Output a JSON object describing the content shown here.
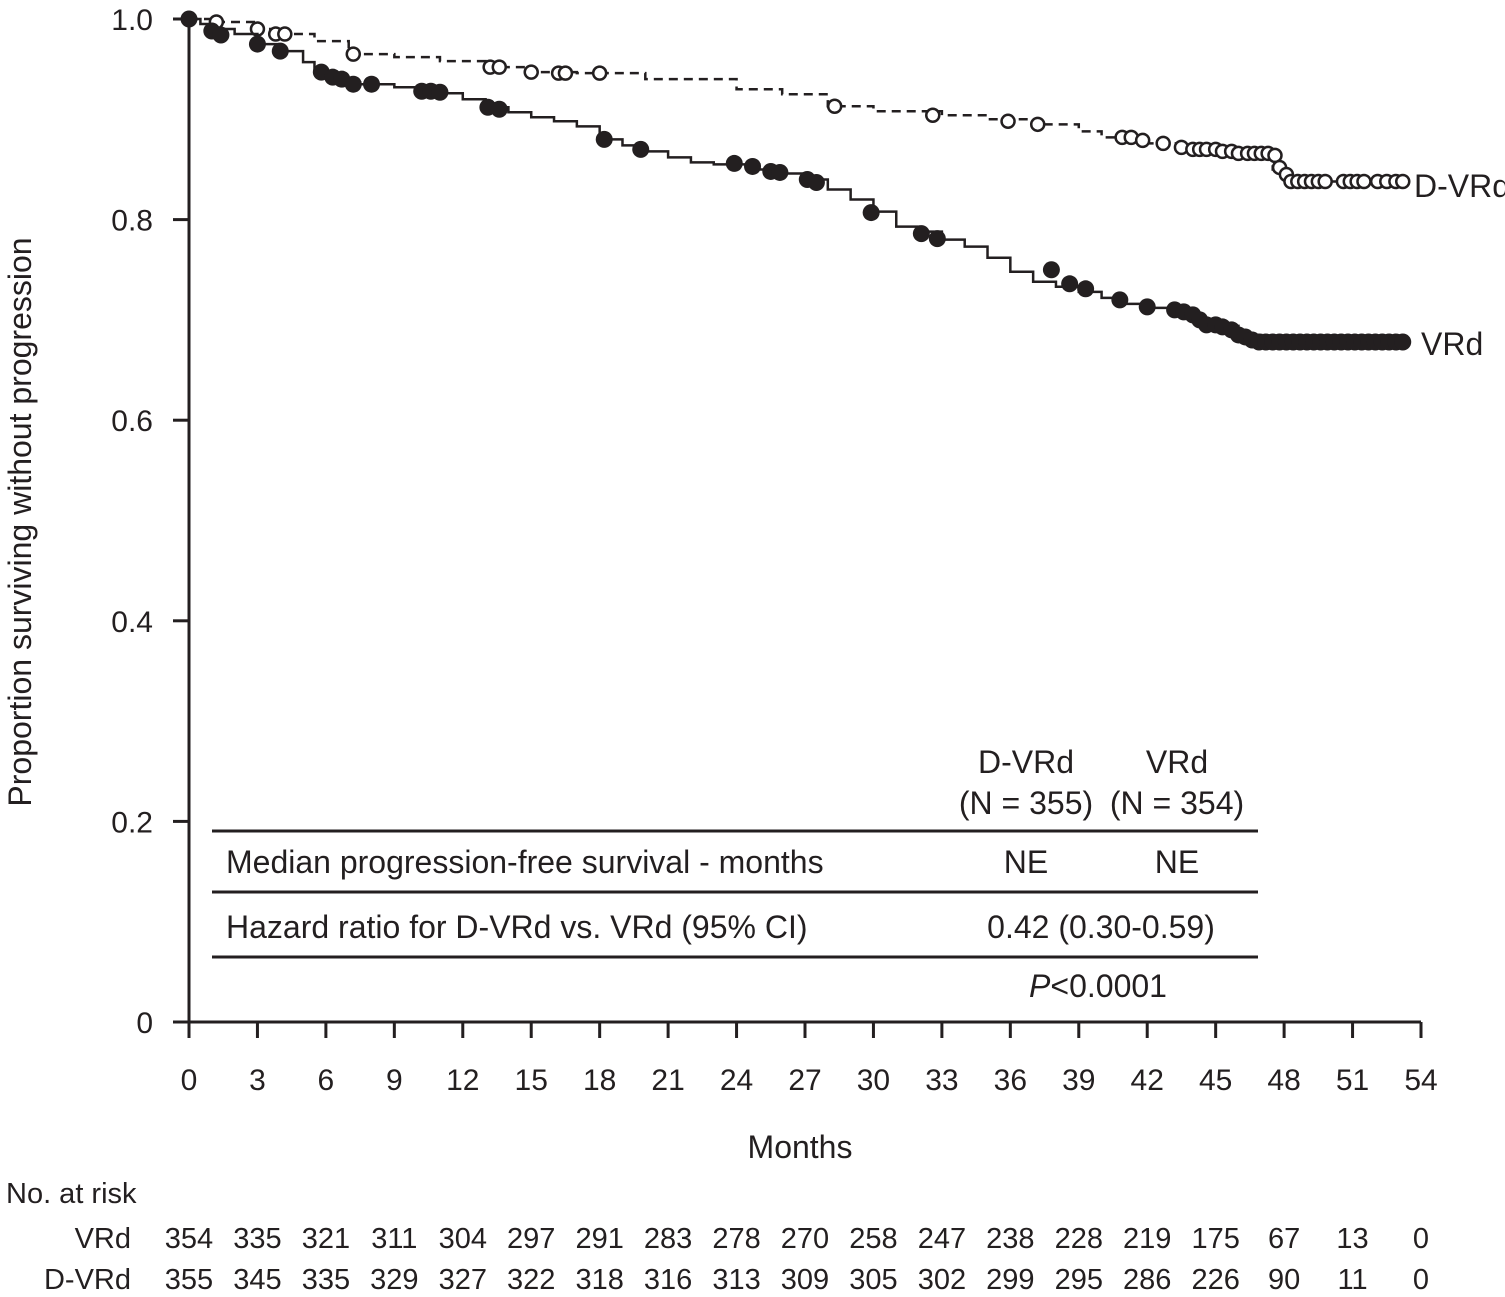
{
  "chart_data": {
    "type": "line",
    "subtype": "kaplan-meier",
    "xlabel": "Months",
    "ylabel": "Proportion surviving without progression",
    "xlim": [
      0,
      54
    ],
    "ylim": [
      0,
      1.0
    ],
    "x_ticks": [
      "0",
      "3",
      "6",
      "9",
      "12",
      "15",
      "18",
      "21",
      "24",
      "27",
      "30",
      "33",
      "36",
      "39",
      "42",
      "45",
      "48",
      "51",
      "54"
    ],
    "y_ticks": [
      "0",
      "0.2",
      "0.4",
      "0.6",
      "0.8",
      "1.0"
    ],
    "grid": false,
    "colors": {
      "ink": "#231f20",
      "background": "#ffffff"
    },
    "series": [
      {
        "name": "D-VRd",
        "line_style": "dashed",
        "marker": "open-circle",
        "steps": [
          [
            0,
            1.0
          ],
          [
            1.2,
            0.997
          ],
          [
            3.0,
            0.99
          ],
          [
            4.2,
            0.985
          ],
          [
            5.5,
            0.978
          ],
          [
            7.0,
            0.965
          ],
          [
            9.0,
            0.962
          ],
          [
            11.0,
            0.958
          ],
          [
            13.0,
            0.952
          ],
          [
            15.0,
            0.947
          ],
          [
            17.0,
            0.946
          ],
          [
            20.0,
            0.94
          ],
          [
            24.0,
            0.93
          ],
          [
            26.0,
            0.925
          ],
          [
            28.0,
            0.913
          ],
          [
            30.0,
            0.908
          ],
          [
            33.0,
            0.904
          ],
          [
            35.0,
            0.9
          ],
          [
            37.0,
            0.895
          ],
          [
            39.0,
            0.888
          ],
          [
            40.0,
            0.882
          ],
          [
            42.0,
            0.876
          ],
          [
            43.5,
            0.87
          ],
          [
            45.0,
            0.865
          ],
          [
            47.0,
            0.862
          ],
          [
            47.5,
            0.85
          ],
          [
            48.0,
            0.838
          ],
          [
            53.0,
            0.838
          ]
        ],
        "censored": [
          [
            1.2,
            0.997
          ],
          [
            3.0,
            0.99
          ],
          [
            3.8,
            0.985
          ],
          [
            4.2,
            0.985
          ],
          [
            7.2,
            0.965
          ],
          [
            13.2,
            0.952
          ],
          [
            13.6,
            0.952
          ],
          [
            15.0,
            0.947
          ],
          [
            16.2,
            0.946
          ],
          [
            16.5,
            0.946
          ],
          [
            18.0,
            0.946
          ],
          [
            28.3,
            0.913
          ],
          [
            32.6,
            0.904
          ],
          [
            35.9,
            0.898
          ],
          [
            37.2,
            0.895
          ],
          [
            40.9,
            0.882
          ],
          [
            41.3,
            0.882
          ],
          [
            41.8,
            0.879
          ],
          [
            42.7,
            0.876
          ],
          [
            43.5,
            0.872
          ],
          [
            44.0,
            0.87
          ],
          [
            44.3,
            0.87
          ],
          [
            44.6,
            0.87
          ],
          [
            45.0,
            0.87
          ],
          [
            45.3,
            0.868
          ],
          [
            45.7,
            0.868
          ],
          [
            46.0,
            0.866
          ],
          [
            46.4,
            0.866
          ],
          [
            46.7,
            0.866
          ],
          [
            47.0,
            0.866
          ],
          [
            47.3,
            0.866
          ],
          [
            47.6,
            0.864
          ],
          [
            47.8,
            0.852
          ],
          [
            48.1,
            0.845
          ],
          [
            48.3,
            0.838
          ],
          [
            48.6,
            0.838
          ],
          [
            48.9,
            0.838
          ],
          [
            49.2,
            0.838
          ],
          [
            49.5,
            0.838
          ],
          [
            49.8,
            0.838
          ],
          [
            50.6,
            0.838
          ],
          [
            50.9,
            0.838
          ],
          [
            51.2,
            0.838
          ],
          [
            51.5,
            0.838
          ],
          [
            52.1,
            0.838
          ],
          [
            52.5,
            0.838
          ],
          [
            52.9,
            0.838
          ],
          [
            53.2,
            0.838
          ]
        ]
      },
      {
        "name": "VRd",
        "line_style": "solid",
        "marker": "filled-circle",
        "steps": [
          [
            0,
            1.0
          ],
          [
            0.5,
            0.995
          ],
          [
            1.0,
            0.99
          ],
          [
            2.0,
            0.985
          ],
          [
            3.0,
            0.975
          ],
          [
            4.0,
            0.968
          ],
          [
            5.0,
            0.957
          ],
          [
            5.5,
            0.947
          ],
          [
            6.5,
            0.94
          ],
          [
            7.0,
            0.937
          ],
          [
            7.5,
            0.935
          ],
          [
            9.0,
            0.932
          ],
          [
            10.0,
            0.928
          ],
          [
            11.0,
            0.926
          ],
          [
            12.0,
            0.92
          ],
          [
            13.0,
            0.912
          ],
          [
            14.0,
            0.907
          ],
          [
            15.0,
            0.902
          ],
          [
            16.0,
            0.898
          ],
          [
            17.0,
            0.893
          ],
          [
            18.0,
            0.88
          ],
          [
            19.0,
            0.874
          ],
          [
            20.0,
            0.868
          ],
          [
            21.0,
            0.862
          ],
          [
            22.0,
            0.857
          ],
          [
            23.0,
            0.855
          ],
          [
            24.0,
            0.855
          ],
          [
            25.0,
            0.85
          ],
          [
            26.0,
            0.846
          ],
          [
            27.0,
            0.84
          ],
          [
            28.0,
            0.83
          ],
          [
            29.0,
            0.82
          ],
          [
            30.0,
            0.808
          ],
          [
            31.0,
            0.793
          ],
          [
            32.0,
            0.788
          ],
          [
            33.0,
            0.78
          ],
          [
            34.0,
            0.773
          ],
          [
            35.0,
            0.762
          ],
          [
            36.0,
            0.748
          ],
          [
            37.0,
            0.738
          ],
          [
            38.0,
            0.733
          ],
          [
            39.0,
            0.728
          ],
          [
            40.0,
            0.722
          ],
          [
            41.0,
            0.716
          ],
          [
            42.0,
            0.712
          ],
          [
            43.0,
            0.708
          ],
          [
            44.0,
            0.7
          ],
          [
            45.0,
            0.694
          ],
          [
            46.0,
            0.685
          ],
          [
            47.0,
            0.678
          ],
          [
            48.0,
            0.678
          ],
          [
            53.0,
            0.678
          ]
        ],
        "censored": [
          [
            0,
            1.0
          ],
          [
            1.0,
            0.988
          ],
          [
            1.4,
            0.984
          ],
          [
            3.0,
            0.975
          ],
          [
            4.0,
            0.968
          ],
          [
            5.8,
            0.947
          ],
          [
            6.3,
            0.942
          ],
          [
            6.7,
            0.94
          ],
          [
            7.2,
            0.935
          ],
          [
            8.0,
            0.935
          ],
          [
            10.2,
            0.928
          ],
          [
            10.6,
            0.928
          ],
          [
            11.0,
            0.927
          ],
          [
            13.1,
            0.912
          ],
          [
            13.6,
            0.91
          ],
          [
            18.2,
            0.88
          ],
          [
            19.8,
            0.87
          ],
          [
            23.9,
            0.856
          ],
          [
            24.7,
            0.853
          ],
          [
            25.5,
            0.848
          ],
          [
            25.9,
            0.847
          ],
          [
            27.1,
            0.84
          ],
          [
            27.5,
            0.837
          ],
          [
            29.9,
            0.807
          ],
          [
            32.1,
            0.786
          ],
          [
            32.8,
            0.781
          ],
          [
            37.8,
            0.75
          ],
          [
            38.6,
            0.736
          ],
          [
            39.3,
            0.731
          ],
          [
            40.8,
            0.72
          ],
          [
            42.0,
            0.713
          ],
          [
            43.2,
            0.71
          ],
          [
            43.6,
            0.708
          ],
          [
            44.0,
            0.705
          ],
          [
            44.3,
            0.7
          ],
          [
            44.6,
            0.695
          ],
          [
            45.0,
            0.695
          ],
          [
            45.3,
            0.693
          ],
          [
            45.7,
            0.69
          ],
          [
            46.0,
            0.685
          ],
          [
            46.3,
            0.683
          ],
          [
            46.6,
            0.68
          ],
          [
            46.9,
            0.678
          ],
          [
            47.2,
            0.678
          ],
          [
            47.5,
            0.678
          ],
          [
            47.8,
            0.678
          ],
          [
            48.1,
            0.678
          ],
          [
            48.4,
            0.678
          ],
          [
            48.7,
            0.678
          ],
          [
            49.0,
            0.678
          ],
          [
            49.3,
            0.678
          ],
          [
            49.6,
            0.678
          ],
          [
            49.9,
            0.678
          ],
          [
            50.2,
            0.678
          ],
          [
            50.5,
            0.678
          ],
          [
            50.8,
            0.678
          ],
          [
            51.1,
            0.678
          ],
          [
            51.4,
            0.678
          ],
          [
            51.7,
            0.678
          ],
          [
            52.0,
            0.678
          ],
          [
            52.3,
            0.678
          ],
          [
            52.6,
            0.678
          ],
          [
            52.9,
            0.678
          ],
          [
            53.2,
            0.678
          ]
        ]
      }
    ],
    "inset_table": {
      "col_header_1": "D-VRd",
      "col_header_1_n": "(N = 355)",
      "col_header_2": "VRd",
      "col_header_2_n": "(N = 354)",
      "row1_label": "Median progression-free survival - months",
      "row1_dvrd": "NE",
      "row1_vrd": "NE",
      "row2_label": "Hazard ratio for D-VRd vs. VRd (95% CI)",
      "row2_value": "0.42 (0.30-0.59)",
      "p_italic": "P",
      "p_value": "<0.0001"
    },
    "at_risk": {
      "title": "No. at risk",
      "rows": [
        {
          "label": "VRd",
          "values": [
            "354",
            "335",
            "321",
            "311",
            "304",
            "297",
            "291",
            "283",
            "278",
            "270",
            "258",
            "247",
            "238",
            "228",
            "219",
            "175",
            "67",
            "13",
            "0"
          ]
        },
        {
          "label": "D-VRd",
          "values": [
            "355",
            "345",
            "335",
            "329",
            "327",
            "322",
            "318",
            "316",
            "313",
            "309",
            "305",
            "302",
            "299",
            "295",
            "286",
            "226",
            "90",
            "11",
            "0"
          ]
        }
      ]
    }
  }
}
